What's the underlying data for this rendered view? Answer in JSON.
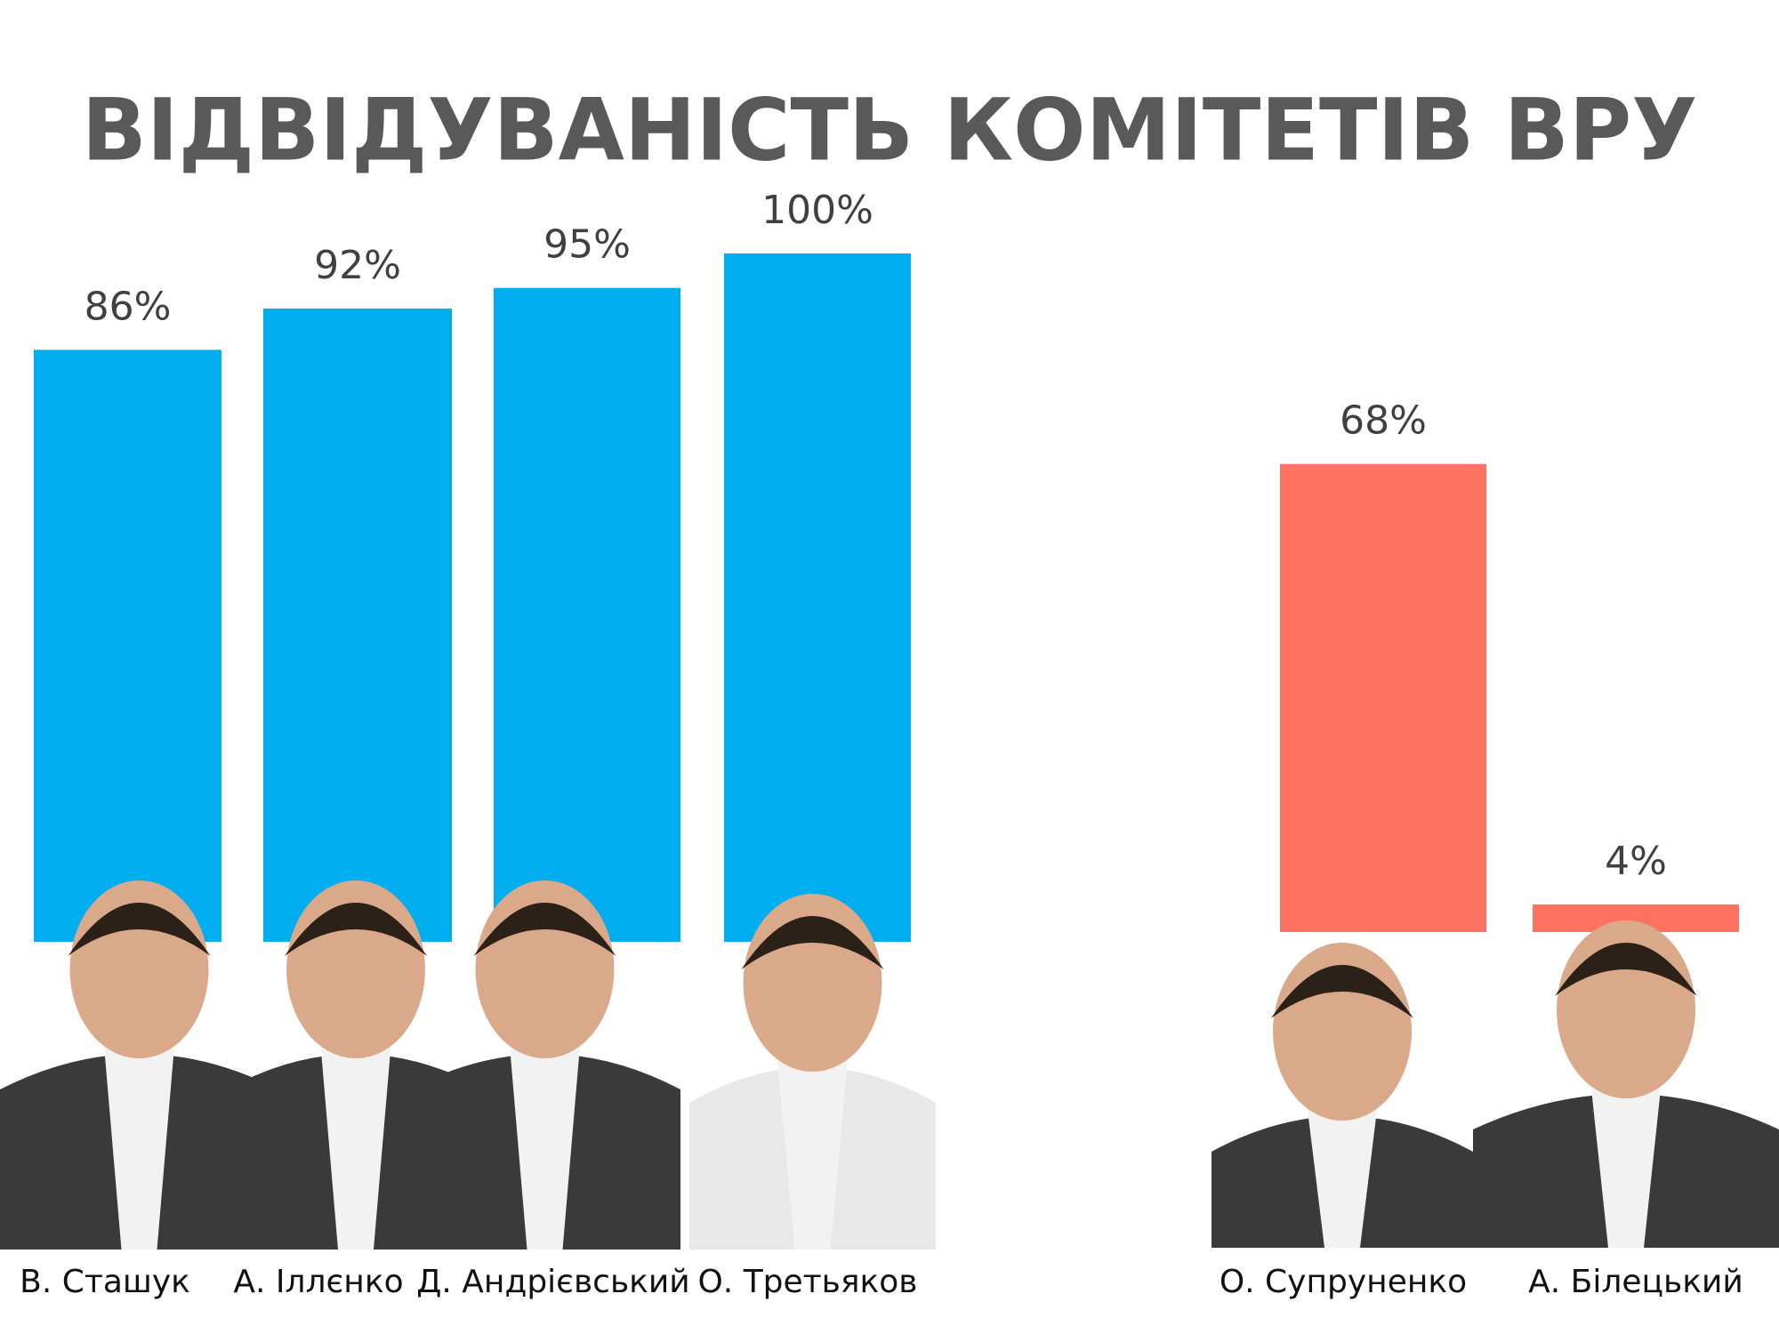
{
  "chart_data": {
    "type": "bar",
    "title": "ВІДВІДУВАНІСТЬ КОМІТЕТІВ ВРУ",
    "categories": [
      "В. Сташук",
      "А. Іллєнко",
      "Д. Андрієвський",
      "О. Третьяков",
      "О. Супруненко",
      "А. Білецький"
    ],
    "values": [
      86,
      92,
      95,
      100,
      68,
      4
    ],
    "value_labels": [
      "86%",
      "92%",
      "95%",
      "100%",
      "68%",
      "4%"
    ],
    "colors": [
      "#00aeef",
      "#00aeef",
      "#00aeef",
      "#00aeef",
      "#ff7261",
      "#ff7261"
    ],
    "ylim": [
      0,
      100
    ]
  }
}
